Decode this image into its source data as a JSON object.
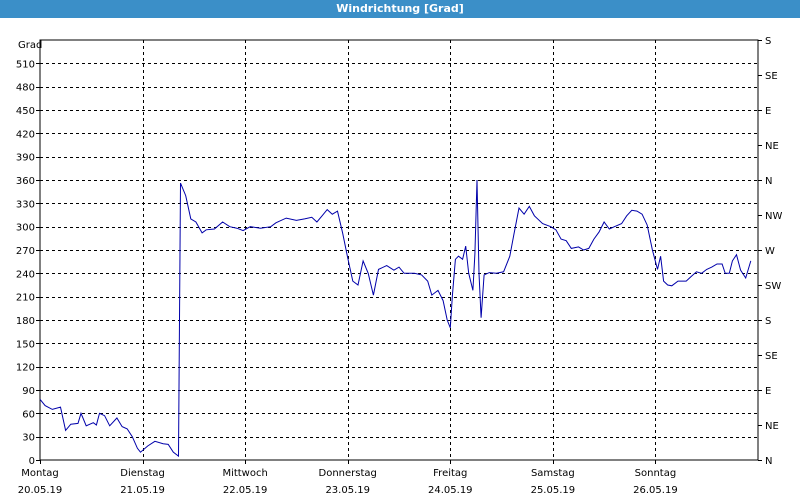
{
  "window": {
    "title": "Windrichtung [Grad]"
  },
  "chart_data": {
    "type": "line",
    "title": "Windrichtung [Grad]",
    "ylabel": "Grad",
    "ylim": [
      0,
      540
    ],
    "yticks": [
      0,
      30,
      60,
      90,
      120,
      150,
      180,
      210,
      240,
      270,
      300,
      330,
      360,
      390,
      420,
      450,
      480,
      510
    ],
    "right_axis_labels": [
      {
        "value": 0,
        "label": "N"
      },
      {
        "value": 45,
        "label": "NE"
      },
      {
        "value": 90,
        "label": "E"
      },
      {
        "value": 135,
        "label": "SE"
      },
      {
        "value": 180,
        "label": "S"
      },
      {
        "value": 225,
        "label": "SW"
      },
      {
        "value": 270,
        "label": "W"
      },
      {
        "value": 315,
        "label": "NW"
      },
      {
        "value": 360,
        "label": "N"
      },
      {
        "value": 405,
        "label": "NE"
      },
      {
        "value": 450,
        "label": "E"
      },
      {
        "value": 495,
        "label": "SE"
      },
      {
        "value": 540,
        "label": "S"
      }
    ],
    "xlim": [
      0,
      7
    ],
    "x_unit": "days",
    "x_ticks": [
      {
        "day": 0,
        "weekday": "Montag",
        "date": "20.05.19"
      },
      {
        "day": 1,
        "weekday": "Dienstag",
        "date": "21.05.19"
      },
      {
        "day": 2,
        "weekday": "Mittwoch",
        "date": "22.05.19"
      },
      {
        "day": 3,
        "weekday": "Donnerstag",
        "date": "23.05.19"
      },
      {
        "day": 4,
        "weekday": "Freitag",
        "date": "24.05.19"
      },
      {
        "day": 5,
        "weekday": "Samstag",
        "date": "25.05.19"
      },
      {
        "day": 6,
        "weekday": "Sonntag",
        "date": "26.05.19"
      }
    ],
    "grid": true,
    "line_color": "#0000aa",
    "series": [
      {
        "points": [
          [
            0.0,
            78
          ],
          [
            0.05,
            70
          ],
          [
            0.12,
            65
          ],
          [
            0.2,
            68
          ],
          [
            0.25,
            38
          ],
          [
            0.3,
            46
          ],
          [
            0.37,
            47
          ],
          [
            0.4,
            60
          ],
          [
            0.45,
            44
          ],
          [
            0.52,
            48
          ],
          [
            0.55,
            45
          ],
          [
            0.58,
            60
          ],
          [
            0.63,
            57
          ],
          [
            0.68,
            44
          ],
          [
            0.75,
            54
          ],
          [
            0.8,
            43
          ],
          [
            0.85,
            40
          ],
          [
            0.9,
            30
          ],
          [
            0.95,
            15
          ],
          [
            0.98,
            10
          ],
          [
            1.05,
            18
          ],
          [
            1.12,
            24
          ],
          [
            1.2,
            21
          ],
          [
            1.25,
            20
          ],
          [
            1.3,
            10
          ],
          [
            1.35,
            5
          ],
          [
            1.37,
            356
          ],
          [
            1.42,
            340
          ],
          [
            1.47,
            310
          ],
          [
            1.52,
            306
          ],
          [
            1.58,
            292
          ],
          [
            1.62,
            296
          ],
          [
            1.7,
            297
          ],
          [
            1.78,
            306
          ],
          [
            1.85,
            300
          ],
          [
            1.92,
            298
          ],
          [
            1.98,
            295
          ],
          [
            2.05,
            300
          ],
          [
            2.15,
            298
          ],
          [
            2.25,
            300
          ],
          [
            2.3,
            305
          ],
          [
            2.4,
            311
          ],
          [
            2.5,
            308
          ],
          [
            2.58,
            310
          ],
          [
            2.65,
            312
          ],
          [
            2.7,
            306
          ],
          [
            2.75,
            314
          ],
          [
            2.8,
            322
          ],
          [
            2.85,
            316
          ],
          [
            2.9,
            320
          ],
          [
            2.95,
            292
          ],
          [
            3.0,
            260
          ],
          [
            3.05,
            230
          ],
          [
            3.1,
            225
          ],
          [
            3.15,
            256
          ],
          [
            3.2,
            240
          ],
          [
            3.25,
            212
          ],
          [
            3.3,
            245
          ],
          [
            3.38,
            250
          ],
          [
            3.45,
            244
          ],
          [
            3.5,
            248
          ],
          [
            3.55,
            240
          ],
          [
            3.65,
            240
          ],
          [
            3.72,
            238
          ],
          [
            3.78,
            230
          ],
          [
            3.82,
            212
          ],
          [
            3.88,
            218
          ],
          [
            3.93,
            205
          ],
          [
            3.97,
            180
          ],
          [
            4.0,
            170
          ],
          [
            4.02,
            210
          ],
          [
            4.05,
            258
          ],
          [
            4.08,
            262
          ],
          [
            4.12,
            258
          ],
          [
            4.15,
            275
          ],
          [
            4.18,
            240
          ],
          [
            4.22,
            218
          ],
          [
            4.24,
            265
          ],
          [
            4.26,
            360
          ],
          [
            4.28,
            240
          ],
          [
            4.3,
            183
          ],
          [
            4.33,
            238
          ],
          [
            4.38,
            241
          ],
          [
            4.45,
            240
          ],
          [
            4.52,
            242
          ],
          [
            4.58,
            262
          ],
          [
            4.62,
            290
          ],
          [
            4.67,
            324
          ],
          [
            4.72,
            316
          ],
          [
            4.77,
            326
          ],
          [
            4.82,
            314
          ],
          [
            4.9,
            304
          ],
          [
            4.98,
            300
          ],
          [
            5.03,
            296
          ],
          [
            5.08,
            284
          ],
          [
            5.13,
            282
          ],
          [
            5.18,
            272
          ],
          [
            5.25,
            274
          ],
          [
            5.3,
            270
          ],
          [
            5.35,
            272
          ],
          [
            5.4,
            284
          ],
          [
            5.45,
            293
          ],
          [
            5.5,
            306
          ],
          [
            5.55,
            297
          ],
          [
            5.6,
            300
          ],
          [
            5.67,
            304
          ],
          [
            5.72,
            314
          ],
          [
            5.77,
            321
          ],
          [
            5.82,
            320
          ],
          [
            5.87,
            316
          ],
          [
            5.92,
            302
          ],
          [
            5.97,
            270
          ],
          [
            6.02,
            245
          ],
          [
            6.05,
            262
          ],
          [
            6.08,
            230
          ],
          [
            6.12,
            225
          ],
          [
            6.16,
            224
          ],
          [
            6.22,
            230
          ],
          [
            6.3,
            230
          ],
          [
            6.35,
            236
          ],
          [
            6.4,
            242
          ],
          [
            6.45,
            240
          ],
          [
            6.5,
            245
          ],
          [
            6.55,
            248
          ],
          [
            6.6,
            252
          ],
          [
            6.65,
            252
          ],
          [
            6.68,
            240
          ],
          [
            6.72,
            240
          ],
          [
            6.75,
            256
          ],
          [
            6.79,
            264
          ],
          [
            6.83,
            244
          ],
          [
            6.88,
            234
          ],
          [
            6.93,
            256
          ]
        ]
      }
    ]
  }
}
